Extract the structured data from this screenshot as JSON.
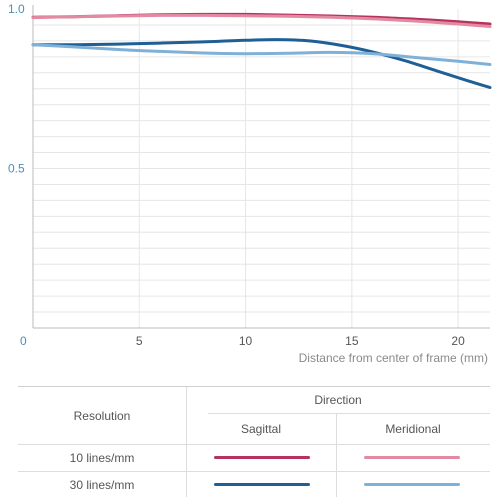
{
  "chart_data": {
    "type": "line",
    "xlabel": "Distance from center of frame (mm)",
    "ylabel": "",
    "xlim": [
      0,
      21.5
    ],
    "ylim": [
      0,
      1.0
    ],
    "x_ticks": [
      "0",
      "5",
      "10",
      "15",
      "20"
    ],
    "y_ticks": [
      "1.0",
      "0.5"
    ],
    "grid": "horizontal and vertical",
    "series": [
      {
        "resolution": "10 lines/mm",
        "direction": "Sagittal",
        "color": "#b5335e",
        "x": [
          0,
          2,
          4,
          6,
          8,
          10,
          12,
          14,
          16,
          18,
          20,
          21.5
        ],
        "y": [
          0.974,
          0.976,
          0.979,
          0.982,
          0.983,
          0.983,
          0.981,
          0.978,
          0.974,
          0.968,
          0.96,
          0.953
        ]
      },
      {
        "resolution": "10 lines/mm",
        "direction": "Meridional",
        "color": "#e38aa3",
        "x": [
          0,
          2,
          4,
          6,
          8,
          10,
          12,
          14,
          16,
          18,
          20,
          21.5
        ],
        "y": [
          0.973,
          0.976,
          0.978,
          0.98,
          0.98,
          0.979,
          0.977,
          0.974,
          0.969,
          0.962,
          0.953,
          0.945
        ]
      },
      {
        "resolution": "30 lines/mm",
        "direction": "Sagittal",
        "color": "#1f5f95",
        "x": [
          0,
          2,
          4,
          6,
          8,
          10,
          11.5,
          13,
          14.5,
          16,
          17.5,
          19,
          20.5,
          21.5
        ],
        "y": [
          0.888,
          0.888,
          0.89,
          0.893,
          0.897,
          0.902,
          0.904,
          0.9,
          0.886,
          0.865,
          0.838,
          0.806,
          0.774,
          0.754
        ]
      },
      {
        "resolution": "30 lines/mm",
        "direction": "Meridional",
        "color": "#7fb1d8",
        "x": [
          0,
          2,
          4,
          6,
          8,
          10,
          12,
          14,
          16,
          18,
          20,
          21.5
        ],
        "y": [
          0.888,
          0.881,
          0.873,
          0.867,
          0.862,
          0.86,
          0.861,
          0.864,
          0.86,
          0.848,
          0.836,
          0.826
        ]
      }
    ]
  },
  "legend": {
    "resolution_header": "Resolution",
    "direction_header": "Direction",
    "sagittal": "Sagittal",
    "meridional": "Meridional",
    "row_10": "10 lines/mm",
    "row_30": "30 lines/mm"
  }
}
